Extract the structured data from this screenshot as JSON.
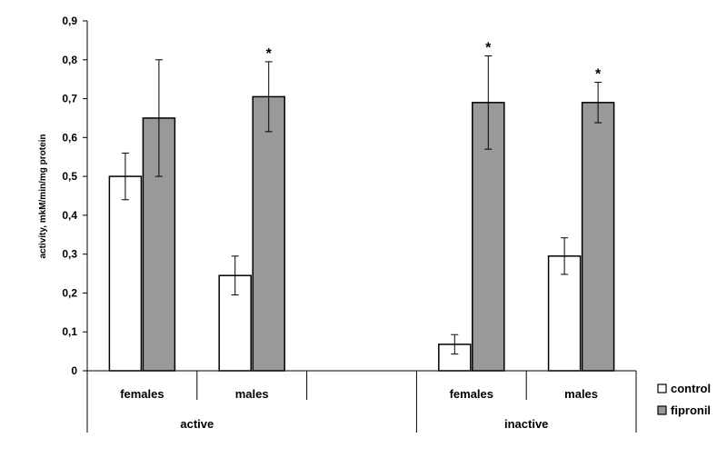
{
  "chart_data": {
    "type": "bar",
    "ylabel": "activity, mkM/min/mg protein",
    "ylim": [
      0,
      0.9
    ],
    "yticks": [
      "0",
      "0,1",
      "0,2",
      "0,3",
      "0,4",
      "0,5",
      "0,6",
      "0,7",
      "0,8",
      "0,9"
    ],
    "groups": [
      {
        "label": "active",
        "subgroups": [
          {
            "label": "females",
            "values": [
              0.5,
              0.65
            ],
            "errors": [
              0.06,
              0.15
            ],
            "stars": [
              "",
              ""
            ]
          },
          {
            "label": "males",
            "values": [
              0.245,
              0.705
            ],
            "errors": [
              0.05,
              0.09
            ],
            "stars": [
              "",
              "*"
            ]
          },
          {
            "label": "",
            "values": [],
            "errors": [],
            "stars": []
          }
        ]
      },
      {
        "label": "inactive",
        "subgroups": [
          {
            "label": "females",
            "values": [
              0.068,
              0.69
            ],
            "errors": [
              0.025,
              0.12
            ],
            "stars": [
              "",
              "*"
            ]
          },
          {
            "label": "males",
            "values": [
              0.295,
              0.69
            ],
            "errors": [
              0.047,
              0.052
            ],
            "stars": [
              "",
              "*"
            ]
          }
        ]
      }
    ],
    "series": [
      {
        "name": "control",
        "color": "#ffffff"
      },
      {
        "name": "fipronil",
        "color": "#999999"
      }
    ],
    "legend": "right",
    "grid": false
  }
}
